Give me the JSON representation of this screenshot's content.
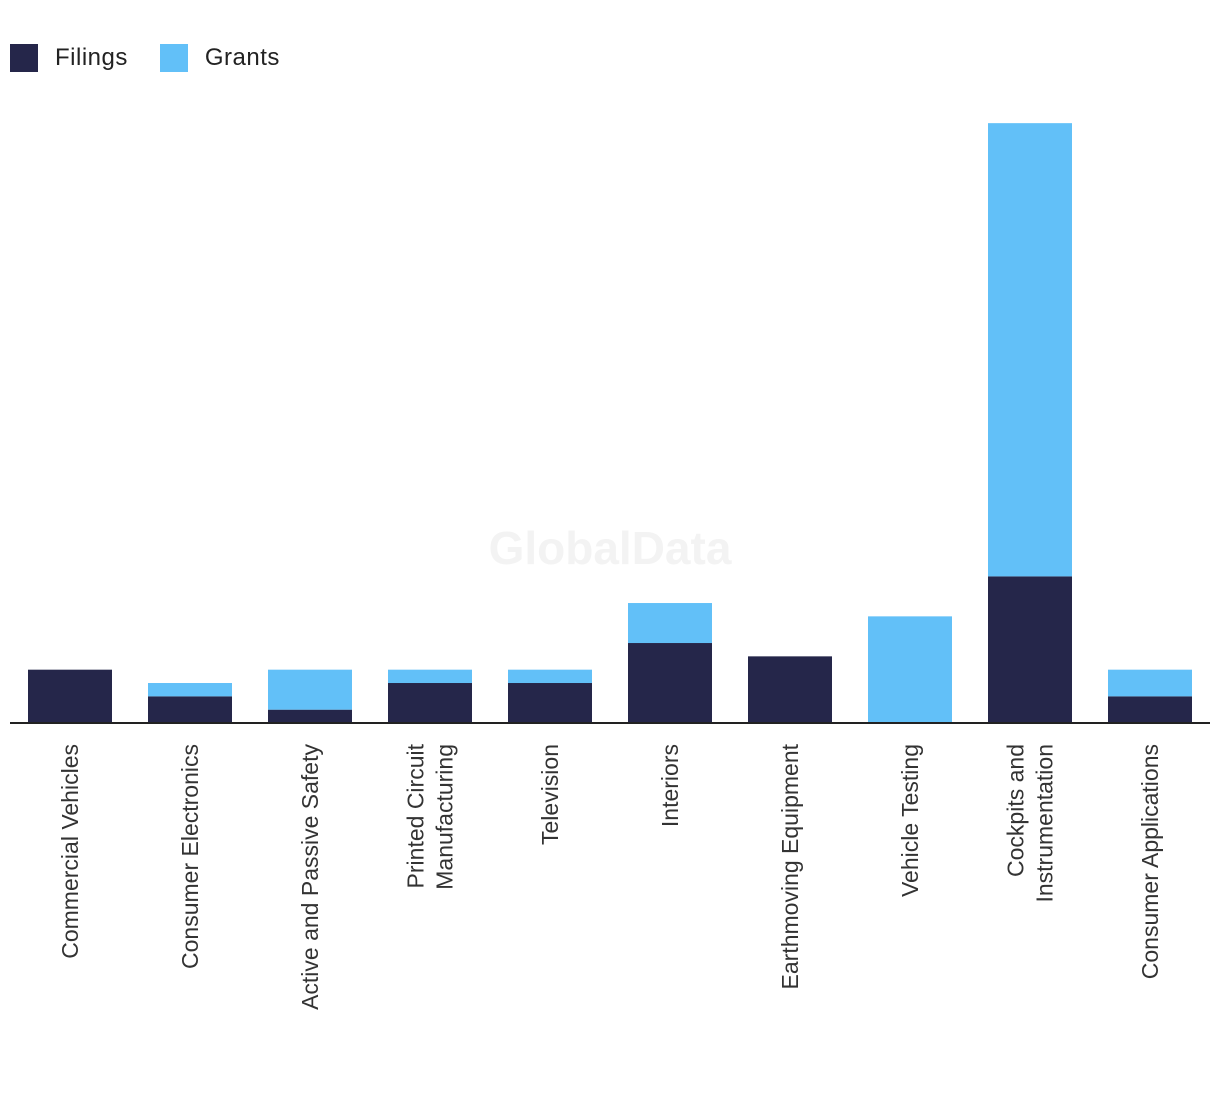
{
  "legend": {
    "series1": "Filings",
    "series2": "Grants"
  },
  "watermark": "GlobalData",
  "colors": {
    "filings": "#25264a",
    "grants": "#62c0f8",
    "axis": "#222222",
    "label": "#333333"
  },
  "chart_data": {
    "type": "bar",
    "stacked": true,
    "categories": [
      "Commercial Vehicles",
      "Consumer Electronics",
      "Active and Passive Safety",
      "Printed Circuit Manufacturing",
      "Television",
      "Interiors",
      "Earthmoving Equipment",
      "Vehicle Testing",
      "Cockpits and Instrumentation",
      "Consumer Applications"
    ],
    "category_lines": [
      [
        "Commercial Vehicles"
      ],
      [
        "Consumer Electronics"
      ],
      [
        "Active and Passive Safety"
      ],
      [
        "Printed Circuit",
        "Manufacturing"
      ],
      [
        "Television"
      ],
      [
        "Interiors"
      ],
      [
        "Earthmoving Equipment"
      ],
      [
        "Vehicle Testing"
      ],
      [
        "Cockpits and",
        "Instrumentation"
      ],
      [
        "Consumer Applications"
      ]
    ],
    "series": [
      {
        "name": "Filings",
        "values": [
          4,
          2,
          1,
          3,
          3,
          6,
          5,
          0,
          11,
          2
        ]
      },
      {
        "name": "Grants",
        "values": [
          0,
          1,
          3,
          1,
          1,
          3,
          0,
          8,
          34,
          2
        ]
      }
    ],
    "ylim": [
      0,
      45
    ],
    "grid": false,
    "legend_position": "top-left"
  }
}
